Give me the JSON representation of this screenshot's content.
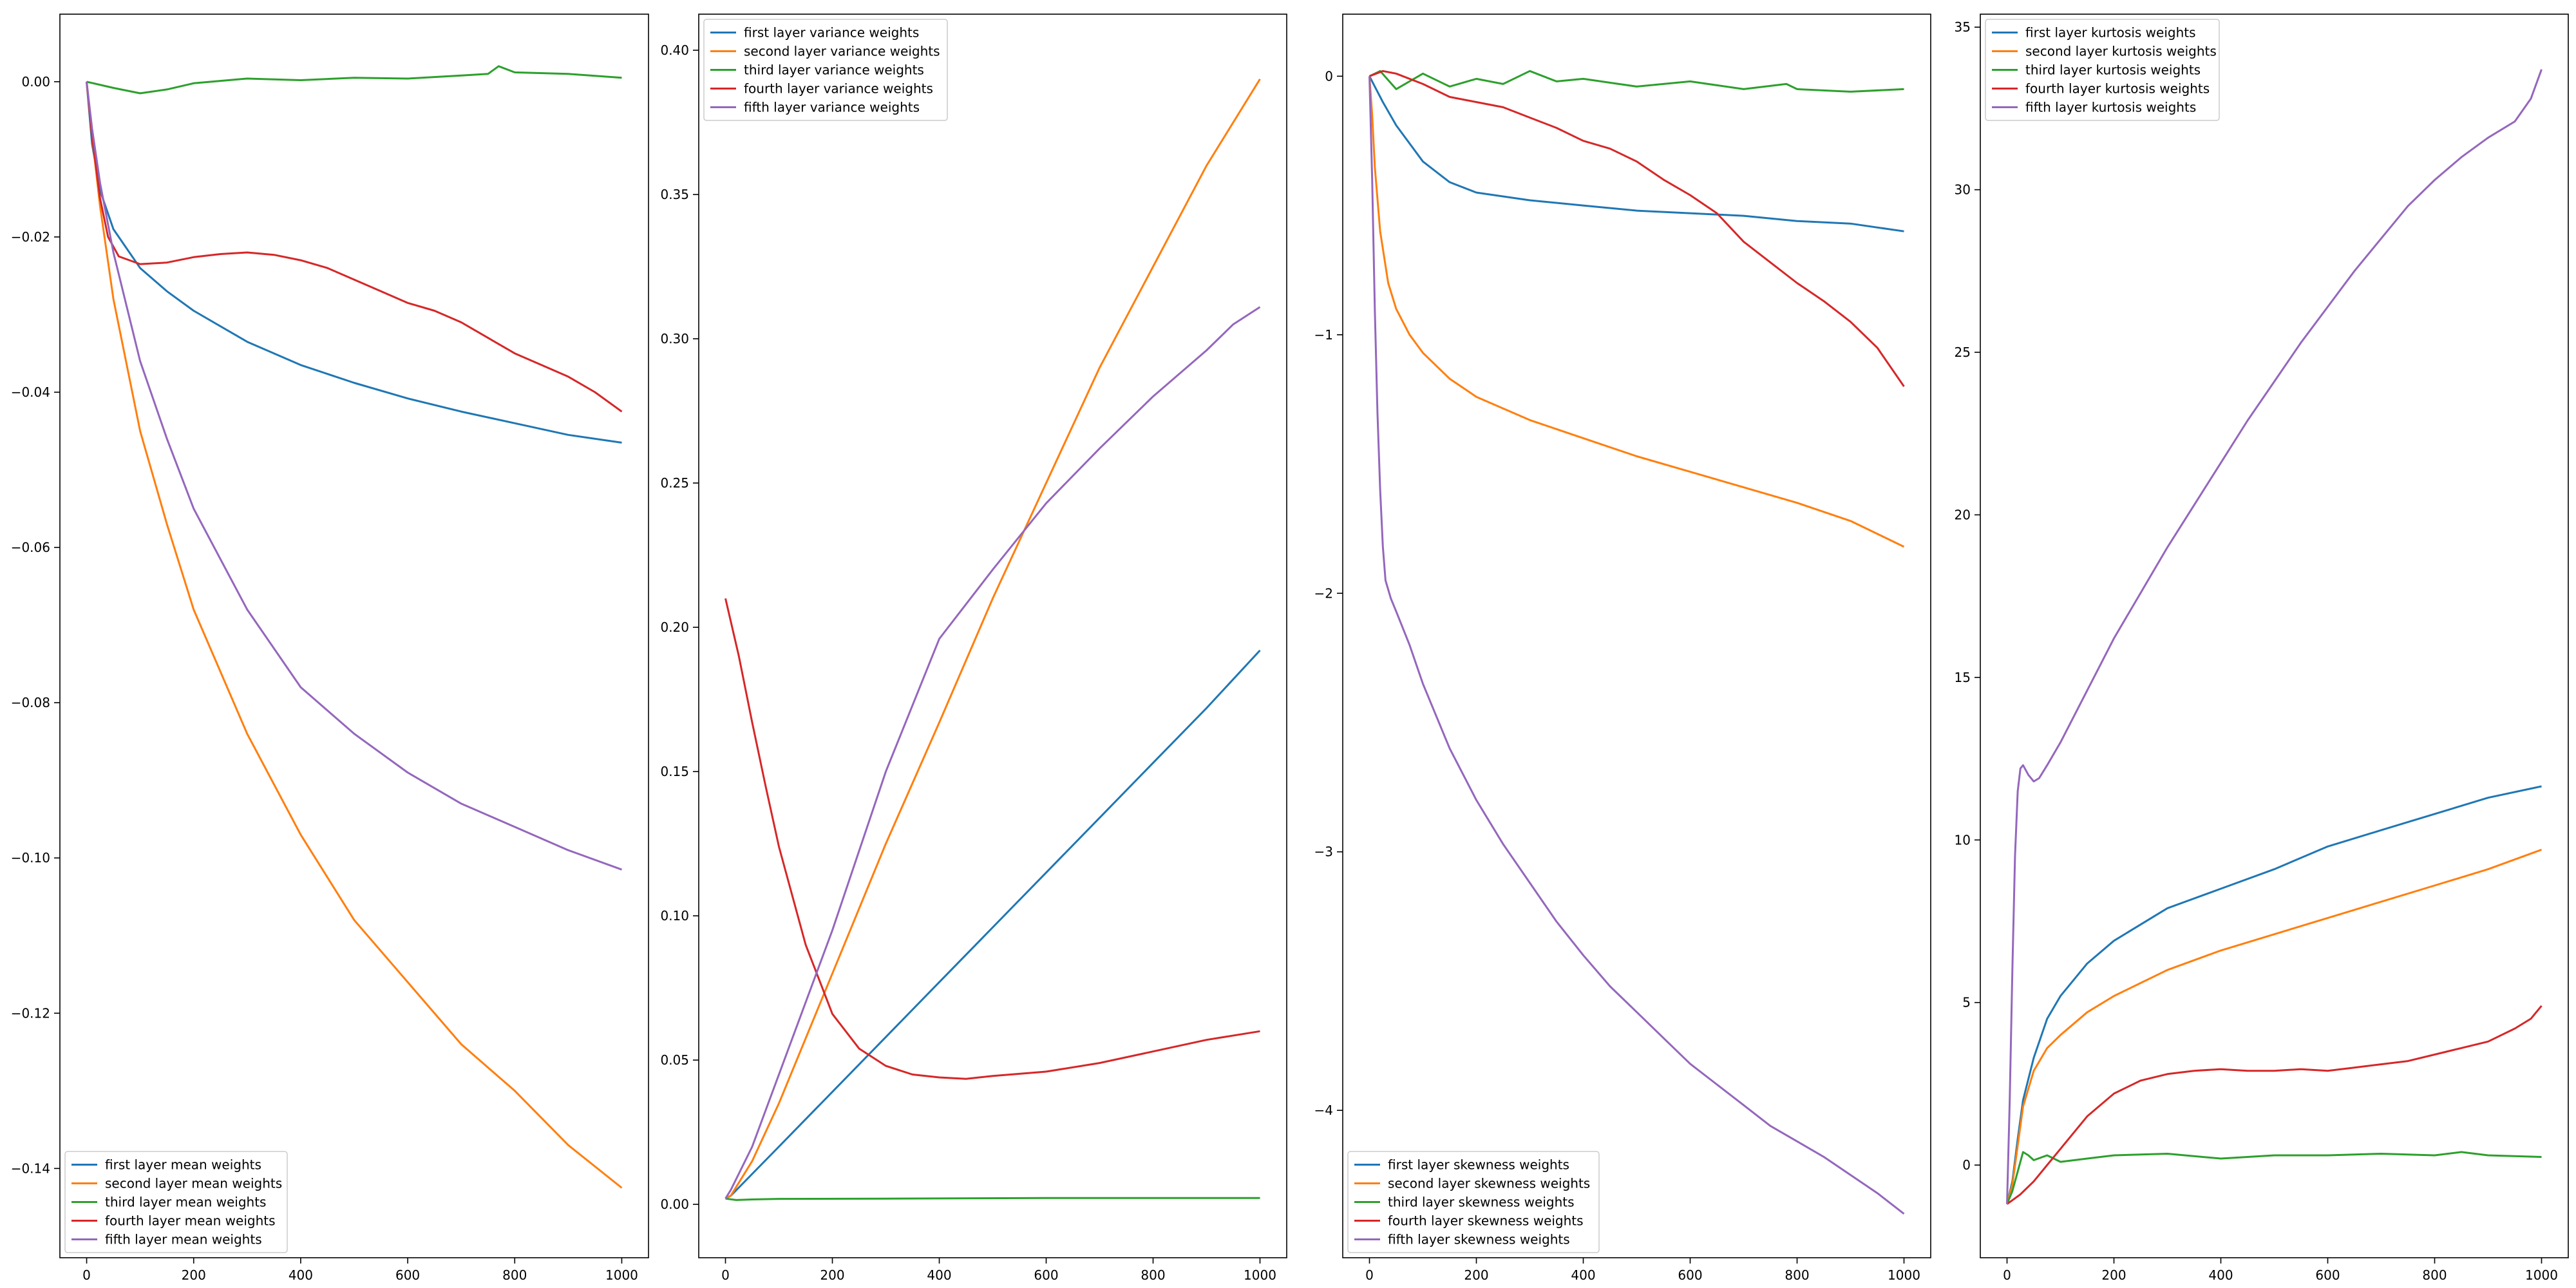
{
  "chart_data": [
    {
      "type": "line",
      "title": "",
      "xlabel": "",
      "ylabel": "",
      "xlim": [
        -50,
        1050
      ],
      "ylim": [
        -0.1515,
        0.0087
      ],
      "xticks": [
        0,
        200,
        400,
        600,
        800,
        1000
      ],
      "yticks": [
        0.0,
        -0.02,
        -0.04,
        -0.06,
        -0.08,
        -0.1,
        -0.12,
        -0.14
      ],
      "ytick_labels": [
        "0.00",
        "−0.02",
        "−0.04",
        "−0.06",
        "−0.08",
        "−0.10",
        "−0.12",
        "−0.14"
      ],
      "grid": false,
      "legend": "bottom-left",
      "series": [
        {
          "name": "first layer mean weights",
          "color": "#1f77b4",
          "x": [
            0,
            10,
            25,
            50,
            100,
            150,
            200,
            300,
            400,
            500,
            600,
            700,
            800,
            900,
            1000
          ],
          "y": [
            0.0,
            -0.008,
            -0.014,
            -0.019,
            -0.024,
            -0.027,
            -0.0295,
            -0.0335,
            -0.0365,
            -0.0388,
            -0.0408,
            -0.0425,
            -0.044,
            -0.0455,
            -0.0465
          ]
        },
        {
          "name": "second layer mean weights",
          "color": "#ff7f0e",
          "x": [
            0,
            10,
            25,
            50,
            100,
            150,
            200,
            300,
            400,
            500,
            600,
            700,
            800,
            900,
            1000
          ],
          "y": [
            0.0,
            -0.007,
            -0.016,
            -0.028,
            -0.045,
            -0.057,
            -0.068,
            -0.084,
            -0.097,
            -0.108,
            -0.116,
            -0.124,
            -0.13,
            -0.137,
            -0.1425
          ]
        },
        {
          "name": "third layer mean weights",
          "color": "#2ca02c",
          "x": [
            0,
            50,
            100,
            150,
            200,
            300,
            400,
            500,
            600,
            700,
            750,
            770,
            800,
            900,
            1000
          ],
          "y": [
            0.0,
            -0.0008,
            -0.0015,
            -0.001,
            -0.0002,
            0.0004,
            0.0002,
            0.0005,
            0.0004,
            0.0008,
            0.001,
            0.002,
            0.0012,
            0.001,
            0.0005
          ]
        },
        {
          "name": "fourth layer mean weights",
          "color": "#d62728",
          "x": [
            0,
            10,
            25,
            40,
            60,
            100,
            150,
            200,
            250,
            300,
            350,
            400,
            450,
            500,
            550,
            600,
            650,
            700,
            750,
            800,
            850,
            900,
            950,
            1000
          ],
          "y": [
            0.0,
            -0.007,
            -0.015,
            -0.02,
            -0.0225,
            -0.0235,
            -0.0233,
            -0.0226,
            -0.0222,
            -0.022,
            -0.0223,
            -0.023,
            -0.024,
            -0.0255,
            -0.027,
            -0.0285,
            -0.0295,
            -0.031,
            -0.033,
            -0.035,
            -0.0365,
            -0.038,
            -0.04,
            -0.0425
          ]
        },
        {
          "name": "fifth layer mean weights",
          "color": "#9467bd",
          "x": [
            0,
            10,
            25,
            50,
            100,
            150,
            200,
            300,
            400,
            500,
            600,
            700,
            800,
            900,
            1000
          ],
          "y": [
            0.0,
            -0.006,
            -0.013,
            -0.022,
            -0.036,
            -0.046,
            -0.055,
            -0.068,
            -0.078,
            -0.084,
            -0.089,
            -0.093,
            -0.096,
            -0.099,
            -0.1015
          ]
        }
      ]
    },
    {
      "type": "line",
      "title": "",
      "xlabel": "",
      "ylabel": "",
      "xlim": [
        -50,
        1050
      ],
      "ylim": [
        -0.0185,
        0.4125
      ],
      "xticks": [
        0,
        200,
        400,
        600,
        800,
        1000
      ],
      "yticks": [
        0.0,
        0.05,
        0.1,
        0.15,
        0.2,
        0.25,
        0.3,
        0.35,
        0.4
      ],
      "ytick_labels": [
        "0.00",
        "0.05",
        "0.10",
        "0.15",
        "0.20",
        "0.25",
        "0.30",
        "0.35",
        "0.40"
      ],
      "grid": false,
      "legend": "top-left",
      "series": [
        {
          "name": "first layer variance weights",
          "color": "#1f77b4",
          "x": [
            0,
            10,
            100,
            200,
            300,
            400,
            500,
            600,
            700,
            800,
            900,
            1000
          ],
          "y": [
            0.002,
            0.003,
            0.02,
            0.039,
            0.058,
            0.077,
            0.096,
            0.115,
            0.134,
            0.153,
            0.172,
            0.192
          ]
        },
        {
          "name": "second layer variance weights",
          "color": "#ff7f0e",
          "x": [
            0,
            10,
            50,
            100,
            200,
            300,
            400,
            500,
            600,
            700,
            800,
            900,
            1000
          ],
          "y": [
            0.002,
            0.003,
            0.015,
            0.035,
            0.08,
            0.125,
            0.167,
            0.21,
            0.25,
            0.29,
            0.325,
            0.36,
            0.39
          ]
        },
        {
          "name": "third layer variance weights",
          "color": "#2ca02c",
          "x": [
            0,
            20,
            50,
            100,
            300,
            600,
            1000
          ],
          "y": [
            0.002,
            0.0015,
            0.0017,
            0.0019,
            0.002,
            0.0022,
            0.0022
          ]
        },
        {
          "name": "fourth layer variance weights",
          "color": "#d62728",
          "x": [
            0,
            25,
            50,
            75,
            100,
            150,
            200,
            250,
            300,
            350,
            400,
            450,
            500,
            600,
            700,
            800,
            900,
            1000
          ],
          "y": [
            0.21,
            0.19,
            0.167,
            0.145,
            0.124,
            0.09,
            0.066,
            0.054,
            0.048,
            0.045,
            0.044,
            0.0435,
            0.0445,
            0.046,
            0.049,
            0.053,
            0.057,
            0.06
          ]
        },
        {
          "name": "fifth layer variance weights",
          "color": "#9467bd",
          "x": [
            0,
            10,
            50,
            100,
            200,
            300,
            400,
            500,
            600,
            700,
            800,
            900,
            950,
            1000
          ],
          "y": [
            0.002,
            0.005,
            0.02,
            0.045,
            0.095,
            0.15,
            0.196,
            0.22,
            0.243,
            0.262,
            0.28,
            0.296,
            0.305,
            0.311
          ]
        }
      ]
    },
    {
      "type": "line",
      "title": "",
      "xlabel": "",
      "ylabel": "",
      "xlim": [
        -50,
        1050
      ],
      "ylim": [
        -4.57,
        0.24
      ],
      "xticks": [
        0,
        200,
        400,
        600,
        800,
        1000
      ],
      "yticks": [
        0,
        -1,
        -2,
        -3,
        -4
      ],
      "ytick_labels": [
        "0",
        "−1",
        "−2",
        "−3",
        "−4"
      ],
      "grid": false,
      "legend": "bottom-left",
      "series": [
        {
          "name": "first layer skewness weights",
          "color": "#1f77b4",
          "x": [
            0,
            10,
            25,
            50,
            100,
            150,
            200,
            300,
            400,
            500,
            600,
            700,
            800,
            900,
            1000
          ],
          "y": [
            0.0,
            -0.04,
            -0.1,
            -0.19,
            -0.33,
            -0.41,
            -0.45,
            -0.48,
            -0.5,
            -0.52,
            -0.53,
            -0.54,
            -0.56,
            -0.57,
            -0.6
          ]
        },
        {
          "name": "second layer skewness weights",
          "color": "#ff7f0e",
          "x": [
            0,
            5,
            10,
            20,
            35,
            50,
            75,
            100,
            150,
            200,
            300,
            400,
            500,
            600,
            700,
            800,
            900,
            1000
          ],
          "y": [
            0.0,
            -0.15,
            -0.35,
            -0.6,
            -0.8,
            -0.9,
            -1.0,
            -1.07,
            -1.17,
            -1.24,
            -1.33,
            -1.4,
            -1.47,
            -1.53,
            -1.59,
            -1.65,
            -1.72,
            -1.82
          ]
        },
        {
          "name": "third layer skewness weights",
          "color": "#2ca02c",
          "x": [
            0,
            20,
            50,
            100,
            150,
            200,
            250,
            300,
            350,
            400,
            500,
            600,
            700,
            780,
            800,
            900,
            1000
          ],
          "y": [
            0.0,
            0.02,
            -0.05,
            0.01,
            -0.04,
            -0.01,
            -0.03,
            0.02,
            -0.02,
            -0.01,
            -0.04,
            -0.02,
            -0.05,
            -0.03,
            -0.05,
            -0.06,
            -0.05
          ]
        },
        {
          "name": "fourth layer skewness weights",
          "color": "#d62728",
          "x": [
            0,
            25,
            50,
            100,
            150,
            200,
            250,
            300,
            350,
            400,
            450,
            500,
            550,
            600,
            650,
            700,
            750,
            800,
            850,
            900,
            950,
            980,
            1000
          ],
          "y": [
            0.0,
            0.02,
            0.01,
            -0.03,
            -0.08,
            -0.1,
            -0.12,
            -0.16,
            -0.2,
            -0.25,
            -0.28,
            -0.33,
            -0.4,
            -0.46,
            -0.53,
            -0.64,
            -0.72,
            -0.8,
            -0.87,
            -0.95,
            -1.05,
            -1.14,
            -1.2
          ]
        },
        {
          "name": "fifth layer skewness weights",
          "color": "#9467bd",
          "x": [
            0,
            5,
            10,
            15,
            20,
            25,
            30,
            40,
            50,
            75,
            100,
            150,
            200,
            250,
            300,
            350,
            400,
            450,
            500,
            550,
            600,
            650,
            700,
            750,
            800,
            850,
            900,
            950,
            1000
          ],
          "y": [
            0.0,
            -0.4,
            -0.9,
            -1.3,
            -1.6,
            -1.82,
            -1.95,
            -2.02,
            -2.07,
            -2.2,
            -2.35,
            -2.6,
            -2.8,
            -2.97,
            -3.12,
            -3.27,
            -3.4,
            -3.52,
            -3.62,
            -3.72,
            -3.82,
            -3.9,
            -3.98,
            -4.06,
            -4.12,
            -4.18,
            -4.25,
            -4.32,
            -4.4
          ]
        }
      ]
    },
    {
      "type": "line",
      "title": "",
      "xlabel": "",
      "ylabel": "",
      "xlim": [
        -50,
        1050
      ],
      "ylim": [
        -2.85,
        35.4
      ],
      "xticks": [
        0,
        200,
        400,
        600,
        800,
        1000
      ],
      "yticks": [
        0,
        5,
        10,
        15,
        20,
        25,
        30,
        35
      ],
      "ytick_labels": [
        "0",
        "5",
        "10",
        "15",
        "20",
        "25",
        "30",
        "35"
      ],
      "grid": false,
      "legend": "top-left",
      "series": [
        {
          "name": "first layer kurtosis weights",
          "color": "#1f77b4",
          "x": [
            0,
            10,
            20,
            30,
            50,
            75,
            100,
            150,
            200,
            300,
            400,
            500,
            600,
            700,
            800,
            900,
            1000
          ],
          "y": [
            -1.2,
            -0.5,
            0.8,
            2.0,
            3.3,
            4.5,
            5.2,
            6.2,
            6.9,
            7.9,
            8.5,
            9.1,
            9.8,
            10.3,
            10.8,
            11.3,
            11.65
          ]
        },
        {
          "name": "second layer kurtosis weights",
          "color": "#ff7f0e",
          "x": [
            0,
            10,
            20,
            30,
            50,
            75,
            100,
            150,
            200,
            300,
            400,
            500,
            600,
            700,
            800,
            900,
            1000
          ],
          "y": [
            -1.2,
            -0.6,
            0.6,
            1.8,
            2.9,
            3.6,
            4.0,
            4.7,
            5.2,
            6.0,
            6.6,
            7.1,
            7.6,
            8.1,
            8.6,
            9.1,
            9.7
          ]
        },
        {
          "name": "third layer kurtosis weights",
          "color": "#2ca02c",
          "x": [
            0,
            10,
            20,
            30,
            40,
            50,
            75,
            100,
            150,
            200,
            300,
            400,
            500,
            600,
            700,
            800,
            850,
            900,
            1000
          ],
          "y": [
            -1.2,
            -0.8,
            -0.2,
            0.4,
            0.3,
            0.15,
            0.3,
            0.1,
            0.2,
            0.3,
            0.35,
            0.2,
            0.3,
            0.3,
            0.35,
            0.3,
            0.4,
            0.3,
            0.25
          ]
        },
        {
          "name": "fourth layer kurtosis weights",
          "color": "#d62728",
          "x": [
            0,
            25,
            50,
            75,
            100,
            150,
            200,
            250,
            300,
            350,
            400,
            450,
            500,
            550,
            600,
            650,
            700,
            750,
            800,
            850,
            900,
            950,
            980,
            1000
          ],
          "y": [
            -1.2,
            -0.9,
            -0.5,
            0.0,
            0.5,
            1.5,
            2.2,
            2.6,
            2.8,
            2.9,
            2.95,
            2.9,
            2.9,
            2.95,
            2.9,
            3.0,
            3.1,
            3.2,
            3.4,
            3.6,
            3.8,
            4.2,
            4.5,
            4.9
          ]
        },
        {
          "name": "fifth layer kurtosis weights",
          "color": "#9467bd",
          "x": [
            0,
            5,
            10,
            15,
            20,
            25,
            30,
            40,
            50,
            60,
            75,
            100,
            150,
            200,
            250,
            300,
            350,
            400,
            450,
            500,
            550,
            600,
            650,
            700,
            750,
            800,
            850,
            900,
            950,
            980,
            1000
          ],
          "y": [
            -1.2,
            2.0,
            6.0,
            9.5,
            11.5,
            12.2,
            12.3,
            12.0,
            11.8,
            11.9,
            12.3,
            13.0,
            14.6,
            16.2,
            17.6,
            19.0,
            20.3,
            21.6,
            22.9,
            24.1,
            25.3,
            26.4,
            27.5,
            28.5,
            29.5,
            30.3,
            31.0,
            31.6,
            32.1,
            32.8,
            33.7
          ]
        }
      ]
    }
  ]
}
